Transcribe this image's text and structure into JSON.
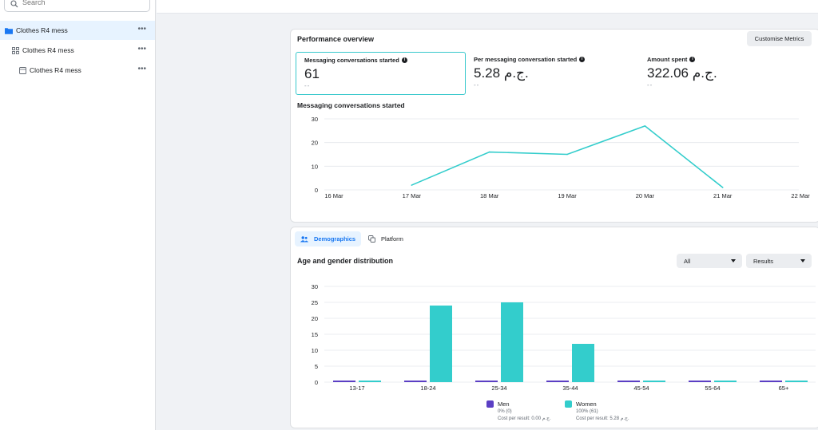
{
  "sidebar": {
    "search_placeholder": "Search",
    "items": [
      {
        "label": "Clothes R4 mess",
        "more": "•••",
        "type": "campaign"
      },
      {
        "label": "Clothes R4 mess",
        "more": "•••",
        "type": "ad-set"
      },
      {
        "label": "Clothes R4 mess",
        "more": "•••",
        "type": "ad"
      }
    ]
  },
  "performance": {
    "title": "Performance overview",
    "customise_label": "Customise Metrics",
    "metrics": [
      {
        "label": "Messaging conversations started",
        "value": "61",
        "compare": "--"
      },
      {
        "label": "Per messaging conversation started",
        "value": "5.28 ج.م.",
        "compare": "--"
      },
      {
        "label": "Amount spent",
        "value": "322.06 ج.م.",
        "compare": "--"
      }
    ],
    "info_glyph": "i"
  },
  "line_chart_title": "Messaging conversations started",
  "demographics": {
    "tabs": [
      {
        "label": "Demographics",
        "icon": "people-icon"
      },
      {
        "label": "Platform",
        "icon": "copy-icon"
      }
    ],
    "title": "Age and gender distribution",
    "filter_all": "All",
    "filter_results": "Results",
    "legend": [
      {
        "name": "Men",
        "pct": "0% (0)",
        "cost": "Cost per result: 0.00 ج.م.",
        "color": "#5b3fc4"
      },
      {
        "name": "Women",
        "pct": "100% (61)",
        "cost": "Cost per result: 5.28 ج.م.",
        "color": "#33cdcc"
      }
    ]
  },
  "chart_data": [
    {
      "type": "line",
      "title": "Messaging conversations started",
      "x": [
        "16 Mar",
        "17 Mar",
        "18 Mar",
        "19 Mar",
        "20 Mar",
        "21 Mar",
        "22 Mar"
      ],
      "series": [
        {
          "values": [
            null,
            2,
            16,
            15,
            27,
            1,
            null
          ],
          "color": "#33cdcc"
        }
      ],
      "ylim": [
        0,
        30
      ],
      "yticks": [
        0,
        10,
        20,
        30
      ],
      "grid": true
    },
    {
      "type": "bar",
      "title": "Age and gender distribution",
      "categories": [
        "13-17",
        "18-24",
        "25-34",
        "35-44",
        "45-54",
        "55-64",
        "65+"
      ],
      "series": [
        {
          "name": "Men",
          "values": [
            0,
            0,
            0,
            0,
            0,
            0,
            0
          ],
          "color": "#5b3fc4"
        },
        {
          "name": "Women",
          "values": [
            0,
            24,
            25,
            12,
            0,
            0,
            0
          ],
          "color": "#33cdcc"
        }
      ],
      "ylim": [
        0,
        30
      ],
      "yticks": [
        0,
        5,
        10,
        15,
        20,
        25,
        30
      ],
      "grid": true,
      "legend": "bottom"
    }
  ]
}
